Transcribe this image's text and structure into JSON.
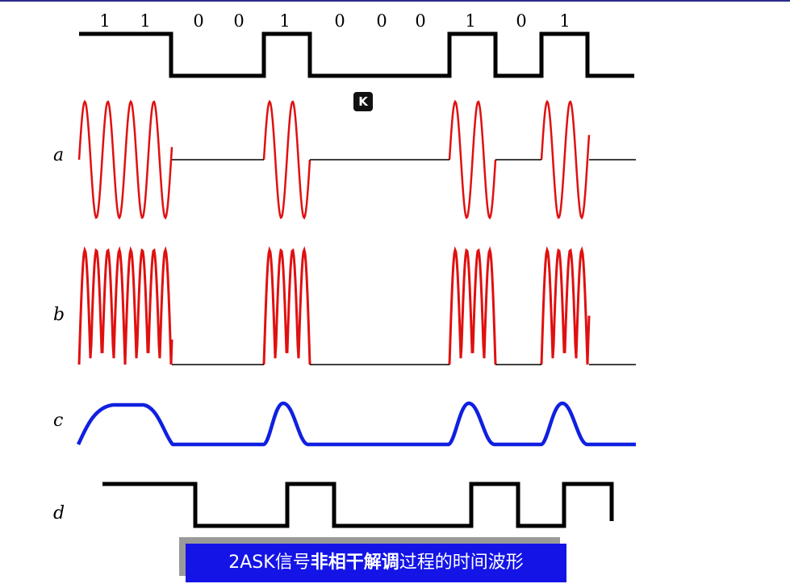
{
  "bits": [
    "1",
    "1",
    "0",
    "0",
    "1",
    "0",
    "0",
    "0",
    "1",
    "0",
    "1"
  ],
  "labels": {
    "a": "a",
    "b": "b",
    "c": "c",
    "d": "d"
  },
  "badge": "K",
  "caption": {
    "prefix": "2ASK信号",
    "emphasis": "非相干解调",
    "suffix": "过程的时间波形"
  },
  "colors": {
    "input": "#000000",
    "bandpass": "#e01010",
    "rectified": "#e01010",
    "envelope": "#1020e0",
    "output": "#000000",
    "caption_bg": "#1414e6"
  }
}
